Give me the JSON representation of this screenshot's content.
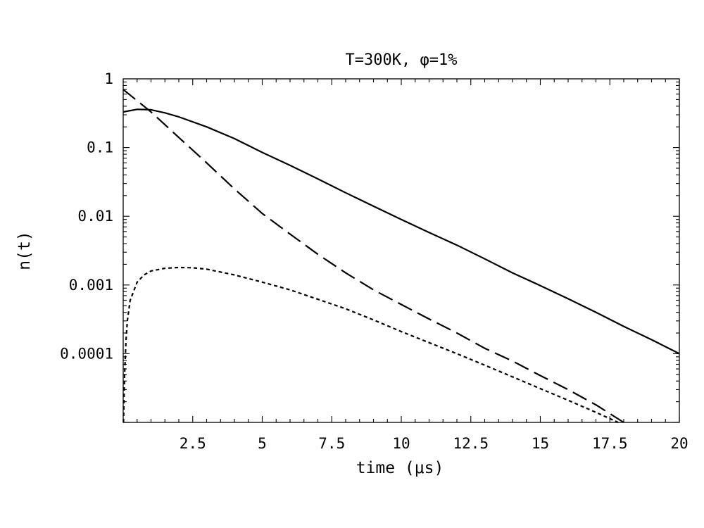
{
  "chart_data": {
    "type": "line",
    "title": "T=300K, φ=1%",
    "xlabel": "time (μs)",
    "ylabel": "n(t)",
    "xlim": [
      0,
      20
    ],
    "ylim": [
      1e-05,
      1
    ],
    "yscale": "log",
    "grid": false,
    "x_ticks": [
      2.5,
      5,
      7.5,
      10,
      12.5,
      15,
      17.5,
      20
    ],
    "x_tick_labels": [
      "2.5",
      "5",
      "7.5",
      "10",
      "12.5",
      "15",
      "17.5",
      "20"
    ],
    "y_ticks": [
      0.0001,
      0.001,
      0.01,
      0.1,
      1
    ],
    "y_tick_labels": [
      "0.0001",
      "0.001",
      "0.01",
      "0.1",
      "1"
    ],
    "series": [
      {
        "style": "solid",
        "color": "#000000",
        "x": [
          0,
          0.5,
          1,
          1.5,
          2,
          3,
          4,
          5,
          6,
          7,
          8,
          9,
          10,
          11,
          12,
          13,
          14,
          15,
          16,
          17,
          18,
          19,
          20
        ],
        "y": [
          0.33,
          0.36,
          0.355,
          0.32,
          0.28,
          0.2,
          0.135,
          0.085,
          0.055,
          0.035,
          0.022,
          0.014,
          0.009,
          0.0058,
          0.0038,
          0.0024,
          0.0015,
          0.00098,
          0.00063,
          0.0004,
          0.00025,
          0.00016,
          0.0001
        ]
      },
      {
        "style": "dashed",
        "color": "#000000",
        "x": [
          0,
          1,
          2,
          3,
          4,
          5,
          6,
          7,
          8,
          9,
          10,
          11,
          12,
          13,
          14,
          15,
          16,
          17,
          18
        ],
        "y": [
          0.7,
          0.33,
          0.14,
          0.06,
          0.025,
          0.011,
          0.0055,
          0.0028,
          0.0015,
          0.00085,
          0.00052,
          0.00032,
          0.0002,
          0.00012,
          7.8e-05,
          4.8e-05,
          3e-05,
          1.8e-05,
          1e-05
        ]
      },
      {
        "style": "dotted",
        "color": "#000000",
        "x": [
          0.01,
          0.05,
          0.1,
          0.15,
          0.25,
          0.5,
          0.75,
          1,
          1.5,
          2,
          2.5,
          3,
          4,
          5,
          6,
          7,
          8,
          9,
          10,
          11,
          12,
          13,
          14,
          15,
          16,
          17,
          17.8
        ],
        "y": [
          1e-05,
          5e-05,
          0.00015,
          0.0003,
          0.0006,
          0.0011,
          0.0014,
          0.0016,
          0.00175,
          0.0018,
          0.00178,
          0.0017,
          0.0014,
          0.0011,
          0.00085,
          0.00062,
          0.00045,
          0.00031,
          0.00021,
          0.000145,
          0.0001,
          6.8e-05,
          4.6e-05,
          3.1e-05,
          2.1e-05,
          1.4e-05,
          1e-05
        ]
      }
    ]
  }
}
